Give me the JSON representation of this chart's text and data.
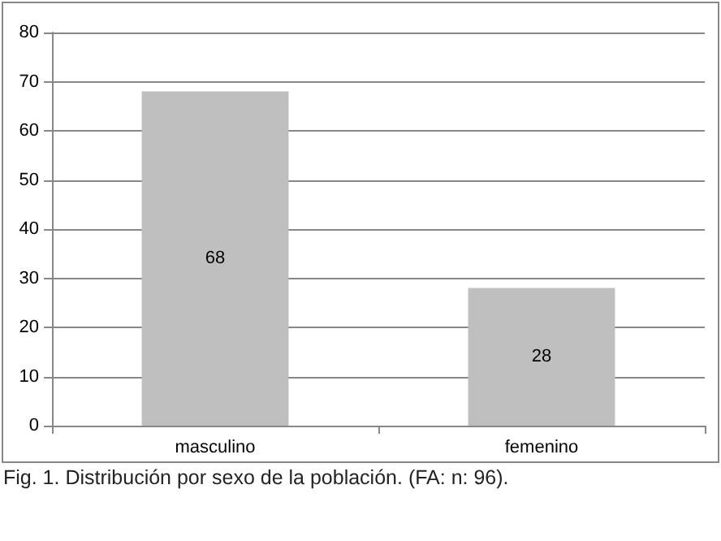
{
  "chart_data": {
    "type": "bar",
    "categories": [
      "masculino",
      "femenino"
    ],
    "values": [
      68,
      28
    ],
    "color": "#bfbfbf",
    "ylim": [
      0,
      80
    ],
    "yticks": [
      0,
      10,
      20,
      30,
      40,
      50,
      60,
      70,
      80
    ],
    "grid": "y",
    "data_labels": true,
    "annotations": [
      "Fig. 1. Distribución por sexo de la población. (FA: n: 96)."
    ]
  }
}
